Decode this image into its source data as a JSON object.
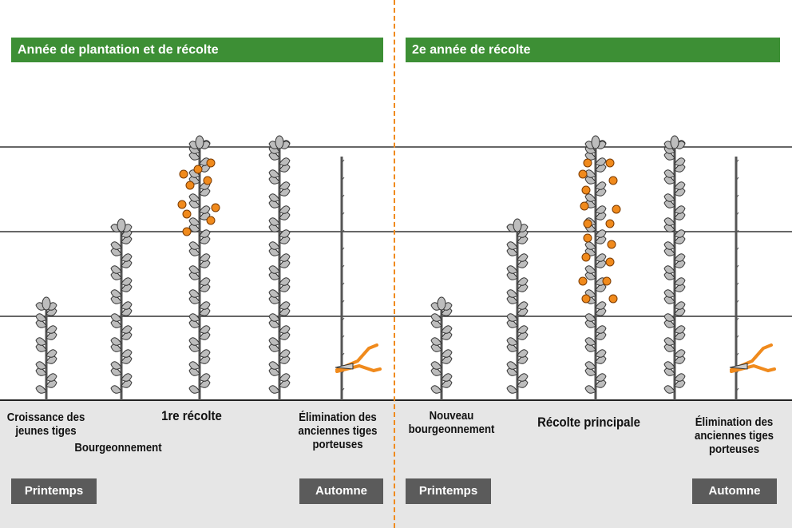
{
  "colors": {
    "header_green": "#3d8f35",
    "divider_orange": "#f08a1c",
    "fruit_orange": "#f08a1c",
    "ground_gray": "#e6e6e6",
    "button_gray": "#5b5b5b"
  },
  "left_panel": {
    "header": "Année de plantation et de récolte",
    "captions": {
      "young_shoots": "Croissance des\njeunes tiges",
      "budding": "Bourgeonnement",
      "first_harvest": "1re récolte",
      "removal": "Élimination des\nanciennes tiges\nporteuses"
    },
    "seasons": {
      "spring": "Printemps",
      "autumn": "Automne"
    }
  },
  "right_panel": {
    "header": "2e année de récolte",
    "captions": {
      "new_budding": "Nouveau\nbourgeonnement",
      "main_harvest": "Récolte principale",
      "removal": "Élimination des\nanciennes tiges\nporteuses"
    },
    "seasons": {
      "spring": "Printemps",
      "autumn": "Automne"
    }
  },
  "icons": [
    "plant-stem-icon",
    "raspberry-icon",
    "pruning-shears-icon"
  ]
}
